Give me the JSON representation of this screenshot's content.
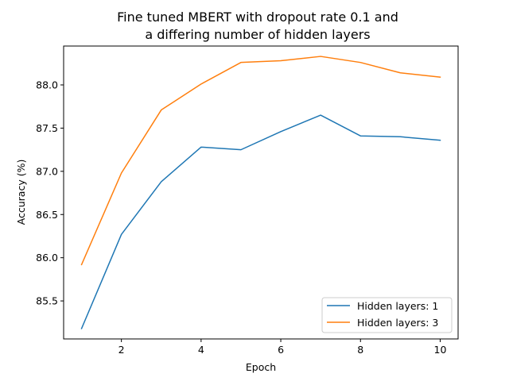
{
  "chart_data": {
    "type": "line",
    "title_lines": [
      "Fine tuned MBERT with dropout rate 0.1 and",
      "a differing number of hidden layers"
    ],
    "xlabel": "Epoch",
    "ylabel": "Accuracy (%)",
    "x": [
      1,
      2,
      3,
      4,
      5,
      6,
      7,
      8,
      9,
      10
    ],
    "xticks": [
      2,
      4,
      6,
      8,
      10
    ],
    "yticks": [
      85.5,
      86.0,
      86.5,
      87.0,
      87.5,
      88.0
    ],
    "ytick_labels": [
      "85.5",
      "86.0",
      "86.5",
      "87.0",
      "87.5",
      "88.0"
    ],
    "xlim": [
      0.55,
      10.45
    ],
    "ylim": [
      85.06,
      88.45
    ],
    "grid": false,
    "legend_position": "lower-right",
    "series": [
      {
        "name": "Hidden layers: 1",
        "color": "#1f77b4",
        "values": [
          85.18,
          86.27,
          86.88,
          87.28,
          87.25,
          87.46,
          87.65,
          87.41,
          87.4,
          87.36
        ]
      },
      {
        "name": "Hidden layers: 3",
        "color": "#ff7f0e",
        "values": [
          85.92,
          86.98,
          87.71,
          88.01,
          88.26,
          88.28,
          88.33,
          88.26,
          88.14,
          88.09
        ]
      }
    ]
  }
}
